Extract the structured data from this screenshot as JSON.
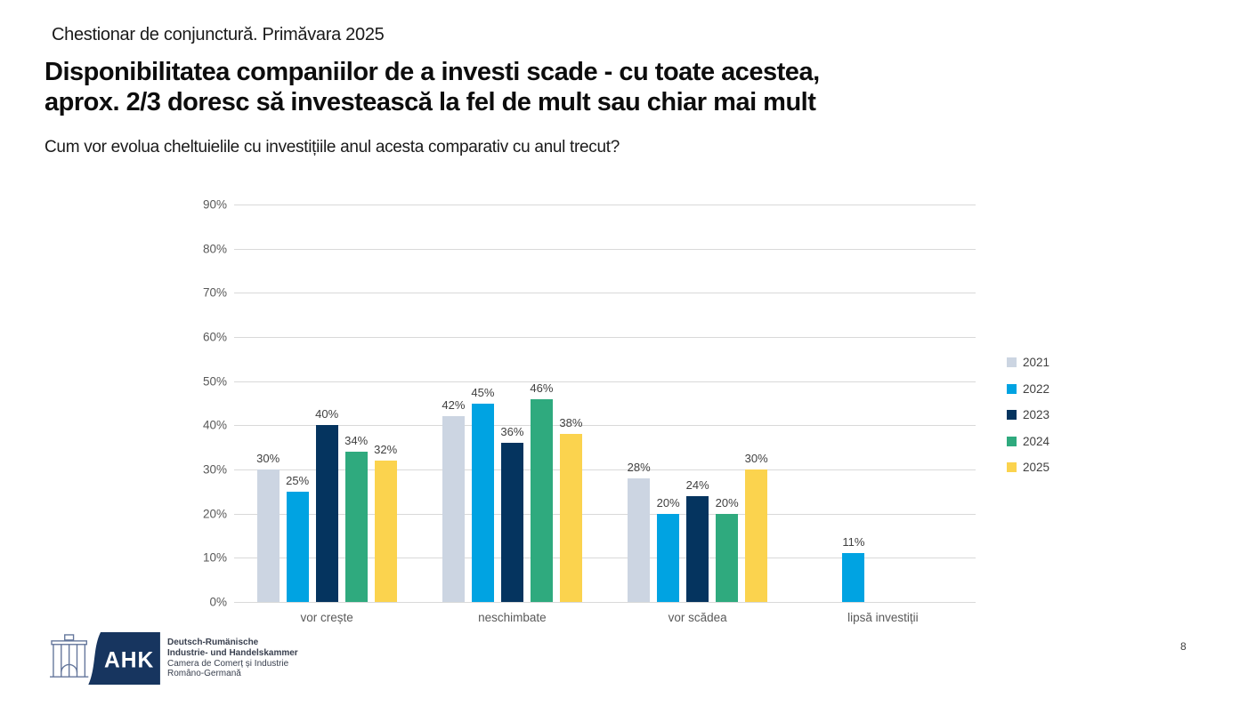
{
  "slide": {
    "kicker": "Chestionar de conjunctură. Primăvara 2025",
    "title_lines": [
      "Disponibilitatea companiilor de a investi scade - cu toate acestea,",
      "aprox. 2/3 doresc să investească la fel de mult sau chiar mai mult"
    ],
    "subtitle": "Cum vor evolua cheltuielile cu investițiile anul acesta comparativ cu anul trecut?"
  },
  "chart_data": {
    "type": "bar",
    "title": "Cum vor evolua cheltuielile cu investițiile anul acesta comparativ cu anul trecut?",
    "categories": [
      "vor crește",
      "neschimbate",
      "vor scădea",
      "lipsă investiții"
    ],
    "series": [
      {
        "name": "2021",
        "color": "#ccd5e2",
        "values": [
          30,
          42,
          28,
          null
        ]
      },
      {
        "name": "2022",
        "color": "#00a3e2",
        "values": [
          25,
          45,
          20,
          11
        ]
      },
      {
        "name": "2023",
        "color": "#05345f",
        "values": [
          40,
          36,
          24,
          null
        ]
      },
      {
        "name": "2024",
        "color": "#2faa7e",
        "values": [
          34,
          46,
          20,
          null
        ]
      },
      {
        "name": "2025",
        "color": "#fbd34e",
        "values": [
          32,
          38,
          30,
          null
        ]
      }
    ],
    "value_suffix": "%",
    "xlabel": "",
    "ylabel": "",
    "ylim": [
      0,
      90
    ],
    "ytick_step": 10,
    "grid": true,
    "legend_position": "right",
    "gridline_color": "#d9d9d9"
  },
  "footer": {
    "logo": {
      "ahk_label": "AHK",
      "navy": "#17355f",
      "org_lines": [
        "Deutsch-Rumänische",
        "Industrie- und Handelskammer",
        "Camera de Comerț și Industrie",
        "Româno-Germană"
      ]
    },
    "page_number": "8"
  }
}
